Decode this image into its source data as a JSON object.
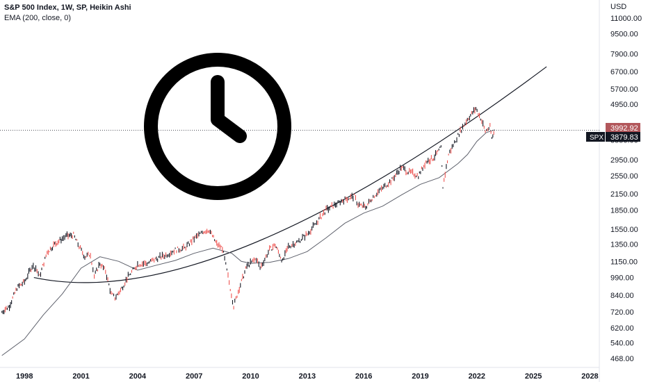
{
  "legend": {
    "title": "S&P 500 Index, 1W, SP, Heikin Ashi",
    "indicator": "EMA (200, close, 0)"
  },
  "axis": {
    "currency": "USD",
    "price_ticks": [
      "11000.00",
      "9500.00",
      "7900.00",
      "6700.00",
      "5700.00",
      "4950.00",
      "3550.00",
      "2950.00",
      "2550.00",
      "2150.00",
      "1850.00",
      "1550.00",
      "1350.00",
      "1150.00",
      "990.00",
      "840.00",
      "720.00",
      "620.00",
      "540.00",
      "468.00"
    ],
    "year_ticks": [
      "1998",
      "2001",
      "2004",
      "2007",
      "2010",
      "2013",
      "2016",
      "2019",
      "2022",
      "2025",
      "2028"
    ]
  },
  "badges": {
    "price_red": "3992.92",
    "symbol": "SPX",
    "price_black": "3879.83"
  },
  "colors": {
    "up": "#131722",
    "down": "#ef5350",
    "ema": "#5d606b",
    "badge_red": "#b2575b",
    "badge_black": "#131722"
  },
  "icons": {
    "overlay": "clock-icon"
  },
  "chart_data": {
    "type": "line",
    "scale": "log",
    "ylim": [
      430,
      13000
    ],
    "xlim": [
      1996.7,
      2028.5
    ],
    "series": [
      {
        "name": "SPX",
        "x": [
          1996.8,
          1997.2,
          1997.6,
          1998.0,
          1998.4,
          1998.6,
          1998.8,
          1999.2,
          1999.6,
          2000.0,
          2000.2,
          2000.6,
          2000.9,
          2001.2,
          2001.5,
          2001.7,
          2002.0,
          2002.3,
          2002.6,
          2002.8,
          2003.1,
          2003.5,
          2004.0,
          2004.5,
          2005.0,
          2005.5,
          2006.0,
          2006.5,
          2007.0,
          2007.5,
          2007.8,
          2008.2,
          2008.5,
          2008.8,
          2009.1,
          2009.4,
          2009.8,
          2010.3,
          2010.5,
          2011.0,
          2011.3,
          2011.7,
          2012.0,
          2012.5,
          2013.0,
          2013.5,
          2014.0,
          2014.5,
          2015.0,
          2015.5,
          2015.7,
          2016.1,
          2016.5,
          2017.0,
          2017.5,
          2018.0,
          2018.3,
          2018.9,
          2019.3,
          2019.7,
          2020.1,
          2020.2,
          2020.5,
          2021.0,
          2021.5,
          2021.95,
          2022.2,
          2022.45,
          2022.7,
          2022.8,
          2022.95
        ],
        "y": [
          720,
          760,
          900,
          950,
          1100,
          1080,
          1000,
          1250,
          1350,
          1420,
          1450,
          1470,
          1320,
          1200,
          1230,
          1000,
          1130,
          1050,
          850,
          820,
          880,
          1000,
          1120,
          1130,
          1180,
          1220,
          1280,
          1300,
          1420,
          1520,
          1540,
          1350,
          1300,
          1000,
          760,
          900,
          1100,
          1180,
          1080,
          1280,
          1340,
          1150,
          1320,
          1380,
          1480,
          1650,
          1850,
          1950,
          2050,
          2100,
          1950,
          1900,
          2100,
          2270,
          2450,
          2750,
          2650,
          2550,
          2900,
          3000,
          3300,
          2300,
          3100,
          3700,
          4300,
          4750,
          4350,
          3850,
          4000,
          3600,
          3880
        ]
      },
      {
        "name": "EMA (200, close, 0)",
        "x": [
          1996.8,
          1998.0,
          1999.0,
          2000.0,
          2001.0,
          2002.0,
          2003.0,
          2004.0,
          2005.0,
          2006.0,
          2007.0,
          2008.0,
          2009.0,
          2009.5,
          2010.0,
          2011.0,
          2012.0,
          2013.0,
          2014.0,
          2015.0,
          2016.0,
          2017.0,
          2018.0,
          2019.0,
          2020.0,
          2021.0,
          2021.5,
          2022.0,
          2022.5,
          2022.95
        ],
        "y": [
          480,
          560,
          700,
          850,
          1080,
          1200,
          1150,
          1060,
          1110,
          1160,
          1240,
          1300,
          1240,
          1150,
          1130,
          1140,
          1180,
          1260,
          1430,
          1640,
          1800,
          1920,
          2130,
          2350,
          2500,
          2850,
          3100,
          3500,
          3800,
          3900
        ]
      }
    ],
    "trendline": {
      "from": [
        1998.5,
        990
      ],
      "to": [
        2025.7,
        7000
      ]
    }
  }
}
